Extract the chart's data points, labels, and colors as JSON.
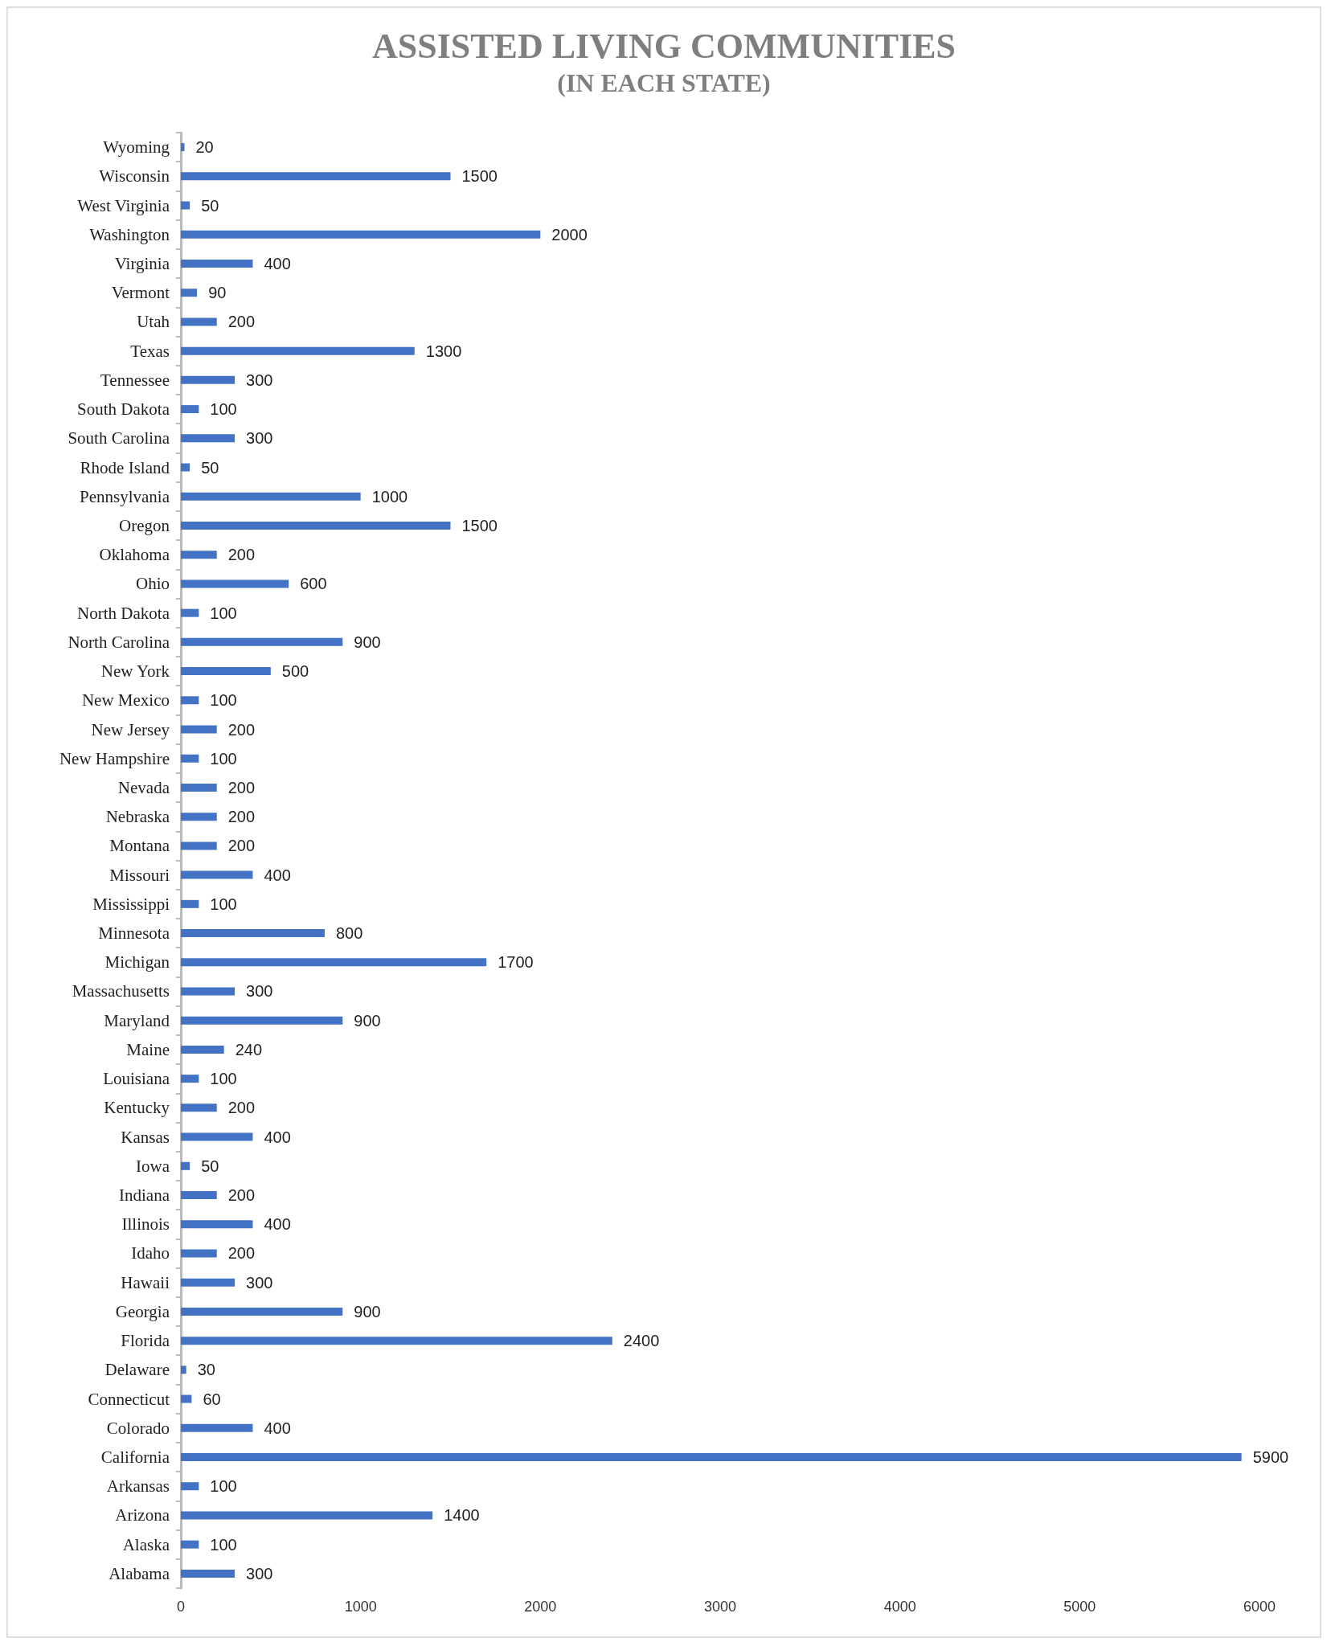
{
  "chart_data": {
    "type": "bar",
    "orientation": "horizontal",
    "title": "ASSISTED LIVING COMMUNITIES",
    "subtitle": "(IN EACH STATE)",
    "categories": [
      "Wyoming",
      "Wisconsin",
      "West Virginia",
      "Washington",
      "Virginia",
      "Vermont",
      "Utah",
      "Texas",
      "Tennessee",
      "South Dakota",
      "South Carolina",
      "Rhode Island",
      "Pennsylvania",
      "Oregon",
      "Oklahoma",
      "Ohio",
      "North Dakota",
      "North Carolina",
      "New York",
      "New Mexico",
      "New Jersey",
      "New Hampshire",
      "Nevada",
      "Nebraska",
      "Montana",
      "Missouri",
      "Mississippi",
      "Minnesota",
      "Michigan",
      "Massachusetts",
      "Maryland",
      "Maine",
      "Louisiana",
      "Kentucky",
      "Kansas",
      "Iowa",
      "Indiana",
      "Illinois",
      "Idaho",
      "Hawaii",
      "Georgia",
      "Florida",
      "Delaware",
      "Connecticut",
      "Colorado",
      "California",
      "Arkansas",
      "Arizona",
      "Alaska",
      "Alabama"
    ],
    "values": [
      20,
      1500,
      50,
      2000,
      400,
      90,
      200,
      1300,
      300,
      100,
      300,
      50,
      1000,
      1500,
      200,
      600,
      100,
      900,
      500,
      100,
      200,
      100,
      200,
      200,
      200,
      400,
      100,
      800,
      1700,
      300,
      900,
      240,
      100,
      200,
      400,
      50,
      200,
      400,
      200,
      300,
      900,
      2400,
      30,
      60,
      400,
      5900,
      100,
      1400,
      100,
      300
    ],
    "color": "#4472c4",
    "data_labels": true,
    "xlim": [
      0,
      6000
    ],
    "xticks": [
      0,
      1000,
      2000,
      3000,
      4000,
      5000,
      6000
    ],
    "grid": false
  }
}
